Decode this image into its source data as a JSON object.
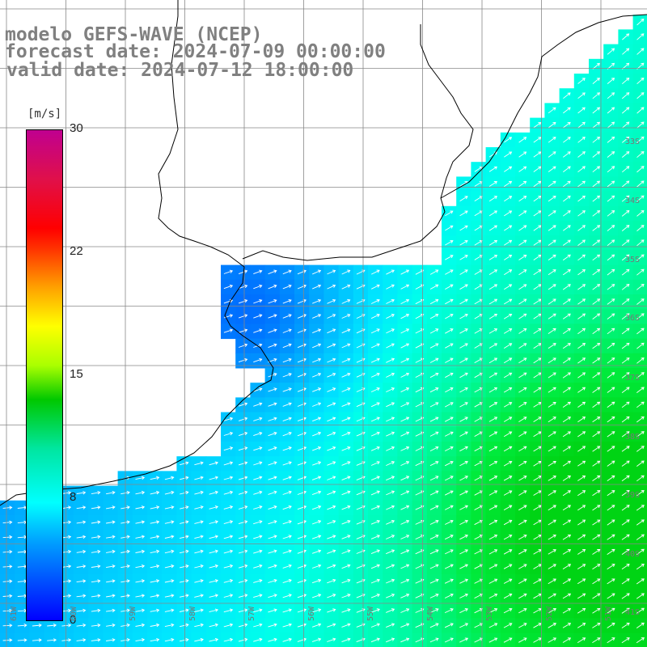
{
  "title": {
    "line1": "modelo GEFS-WAVE (NCEP)",
    "line2": "forecast date: 2024-07-09 00:00:00",
    "line3": "valid date: 2024-07-12 18:00:00"
  },
  "colorbar": {
    "unit": "[m/s]",
    "ticks": [
      "30",
      "22",
      "15",
      "8",
      "0"
    ],
    "tick_values": [
      30,
      22,
      15,
      8,
      0
    ],
    "min": 0,
    "max": 30
  },
  "lat_labels": [
    "33S",
    "34S",
    "35S",
    "36S",
    "37S",
    "38S",
    "39S",
    "40S",
    "41S"
  ],
  "lat_values": [
    -33,
    -34,
    -35,
    -36,
    -37,
    -38,
    -39,
    -40,
    -41
  ],
  "lon_labels": [
    "61W",
    "60W",
    "59W",
    "58W",
    "57W",
    "56W",
    "55W",
    "54W",
    "53W",
    "52W",
    "51W"
  ],
  "lon_values": [
    -61,
    -60,
    -59,
    -58,
    -57,
    -56,
    -55,
    -54,
    -53,
    -52,
    -51
  ],
  "colors": {
    "grid": "#888888",
    "coast": "#000000",
    "arrow": "#ffffff",
    "title": "#808080"
  },
  "legend_icon": "colorbar",
  "arrow_icon": "wind-arrow-icon"
}
